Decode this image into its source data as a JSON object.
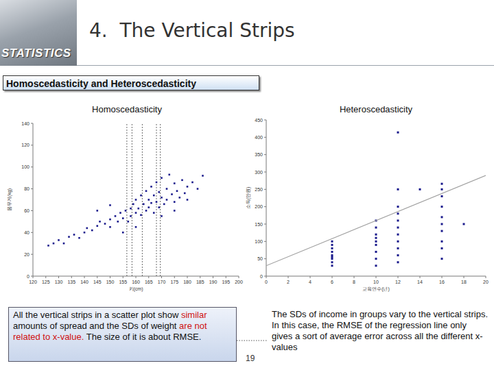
{
  "slide": {
    "banner": "STATISTICS",
    "title": "4.  The Vertical Strips",
    "section": "Homoscedasticity and Heteroscedasticity",
    "page": "19",
    "captions": [
      {
        "segments": [
          {
            "text": "All the vertical strips in a scatter plot show ",
            "emphasis": false
          },
          {
            "text": "similar",
            "emphasis": true
          },
          {
            "text": " amounts of spread and the SDs of weight ",
            "emphasis": false
          },
          {
            "text": "are not related to x-value.",
            "emphasis": true
          },
          {
            "text": " The size of it is about RMSE.",
            "emphasis": false
          }
        ]
      },
      {
        "segments": [
          {
            "text": "The SDs of income in groups vary to the vertical strips. In this case, the RMSE of the regression line only gives a sort of average error across all the different x-values",
            "emphasis": false
          }
        ]
      }
    ]
  },
  "chart_data": [
    {
      "type": "scatter",
      "title": "Homoscedasticity",
      "x_label": "키(cm)",
      "y_label": "몸무게(kg)",
      "xlim": [
        120,
        200
      ],
      "xticks": [
        120,
        125,
        130,
        135,
        140,
        145,
        150,
        155,
        160,
        165,
        170,
        175,
        180,
        185,
        190,
        195,
        200
      ],
      "ylim": [
        0,
        140
      ],
      "yticks": [
        0,
        20,
        40,
        60,
        80,
        100,
        120,
        140
      ],
      "grid": false,
      "vertical_lines": [
        156.5,
        158.5,
        162.5,
        168,
        169.5
      ],
      "series": [
        {
          "color": "#1a1a8c",
          "marker": "square",
          "x": [
            126,
            128,
            130,
            132,
            134,
            136,
            138,
            140,
            141,
            143,
            145,
            146,
            148,
            150,
            150,
            152,
            153,
            154,
            155,
            156,
            157,
            158,
            158,
            159,
            160,
            160,
            161,
            162,
            162,
            163,
            164,
            164,
            165,
            165,
            166,
            166,
            167,
            167,
            168,
            168,
            169,
            169,
            170,
            170,
            171,
            172,
            172,
            173,
            174,
            175,
            175,
            176,
            177,
            178,
            179,
            180,
            182,
            184,
            186,
            145,
            150,
            155,
            160,
            170,
            175,
            180
          ],
          "values": [
            28,
            30,
            33,
            30,
            36,
            38,
            35,
            40,
            44,
            42,
            46,
            50,
            48,
            52,
            45,
            55,
            50,
            58,
            53,
            60,
            50,
            62,
            55,
            66,
            58,
            70,
            62,
            56,
            74,
            66,
            60,
            78,
            70,
            63,
            82,
            67,
            58,
            74,
            86,
            68,
            63,
            77,
            72,
            90,
            66,
            80,
            70,
            93,
            75,
            68,
            85,
            78,
            72,
            88,
            76,
            82,
            86,
            80,
            92,
            60,
            65,
            40,
            45,
            55,
            60,
            70
          ]
        }
      ]
    },
    {
      "type": "scatter",
      "title": "Heteroscedasticity",
      "x_label": "교육연수(년)",
      "y_label": "소득(만원)",
      "xlim": [
        0,
        20
      ],
      "xticks": [
        0,
        2,
        4,
        6,
        8,
        10,
        12,
        14,
        16,
        18,
        20
      ],
      "ylim": [
        0,
        450
      ],
      "yticks": [
        0,
        50,
        100,
        150,
        200,
        250,
        300,
        350,
        400,
        450
      ],
      "grid": false,
      "series": [
        {
          "color": "#1a1a8c",
          "marker": "square",
          "x": [
            6,
            6,
            6,
            6,
            6,
            6,
            6,
            6,
            6,
            10,
            10,
            10,
            10,
            10,
            10,
            10,
            10,
            10,
            12,
            12,
            12,
            12,
            12,
            12,
            12,
            12,
            12,
            12,
            12,
            14,
            16,
            16,
            16,
            16,
            16,
            16,
            16,
            16,
            16,
            16,
            18
          ],
          "values": [
            30,
            40,
            50,
            55,
            60,
            70,
            80,
            90,
            100,
            30,
            50,
            70,
            90,
            100,
            110,
            120,
            140,
            160,
            40,
            60,
            80,
            100,
            120,
            140,
            160,
            180,
            200,
            250,
            414,
            250,
            50,
            80,
            100,
            130,
            150,
            170,
            200,
            230,
            250,
            266,
            150
          ]
        },
        {
          "type": "line",
          "color": "#a0a0a0",
          "line_style": "solid",
          "x": [
            0,
            20
          ],
          "values": [
            30,
            290
          ]
        }
      ]
    }
  ]
}
